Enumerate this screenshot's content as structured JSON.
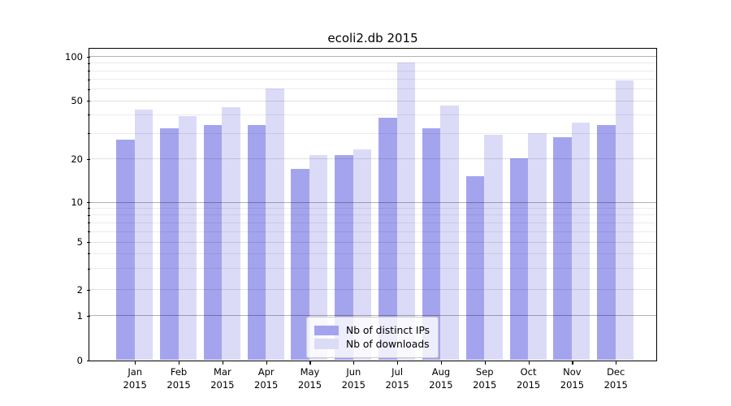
{
  "chart_data": {
    "type": "bar",
    "title": "ecoli2.db 2015",
    "categories": [
      "Jan 2015",
      "Feb 2015",
      "Mar 2015",
      "Apr 2015",
      "May 2015",
      "Jun 2015",
      "Jul 2015",
      "Aug 2015",
      "Sep 2015",
      "Oct 2015",
      "Nov 2015",
      "Dec 2015"
    ],
    "x_tick_months": [
      "Jan",
      "Feb",
      "Mar",
      "Apr",
      "May",
      "Jun",
      "Jul",
      "Aug",
      "Sep",
      "Oct",
      "Nov",
      "Dec"
    ],
    "x_tick_year": "2015",
    "series": [
      {
        "name": "Nb of distinct IPs",
        "color": "#a4a4ee",
        "values": [
          27,
          32,
          34,
          34,
          17,
          21,
          38,
          32,
          15,
          20,
          28,
          34
        ]
      },
      {
        "name": "Nb of downloads",
        "color": "#dbdbf8",
        "values": [
          43,
          39,
          45,
          60,
          21,
          23,
          90,
          46,
          29,
          30,
          35,
          68
        ]
      }
    ],
    "y_axis": {
      "scale": "symlog",
      "ticks": [
        0,
        1,
        2,
        5,
        10,
        20,
        50,
        100
      ],
      "tick_labels": [
        "0",
        "1",
        "2",
        "5",
        "10",
        "20",
        "50",
        "100"
      ],
      "minor_gridline_values": [
        3,
        4,
        6,
        7,
        8,
        9,
        30,
        40,
        60,
        70,
        80,
        90
      ],
      "range": [
        0,
        100
      ],
      "grid": true
    },
    "legend_position": "lower center",
    "background_color": "#ffffff"
  }
}
